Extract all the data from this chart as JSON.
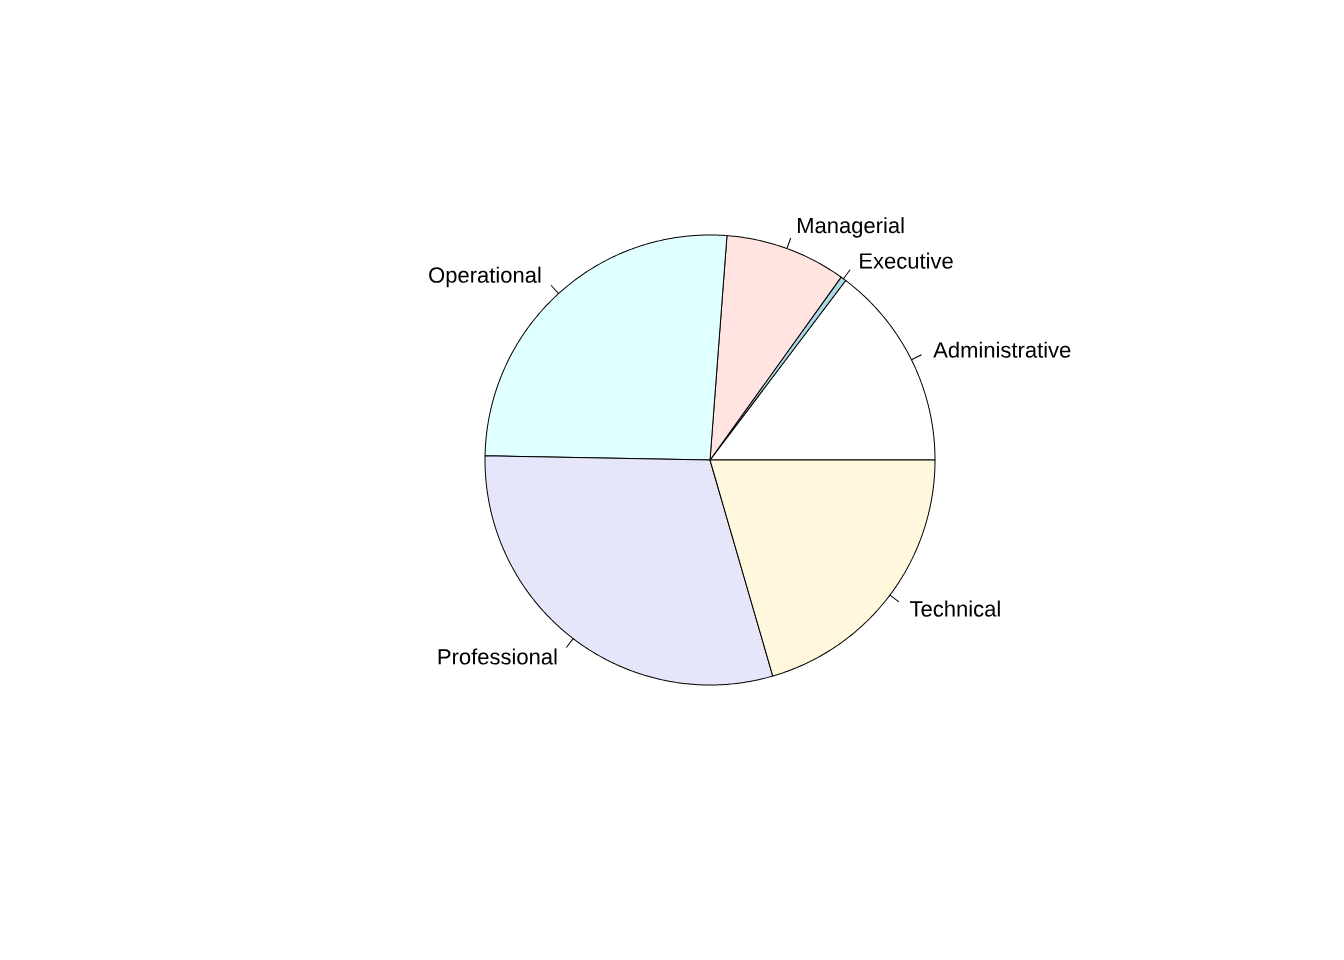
{
  "chart_data": {
    "type": "pie",
    "categories": [
      "Administrative",
      "Executive",
      "Managerial",
      "Operational",
      "Professional",
      "Technical"
    ],
    "values": [
      14.7,
      0.4,
      8.7,
      25.9,
      29.8,
      20.5
    ],
    "colors": [
      "#ffffff",
      "#add8e6",
      "#ffe4e1",
      "#e0ffff",
      "#e6e6fa",
      "#fff8dc"
    ]
  }
}
